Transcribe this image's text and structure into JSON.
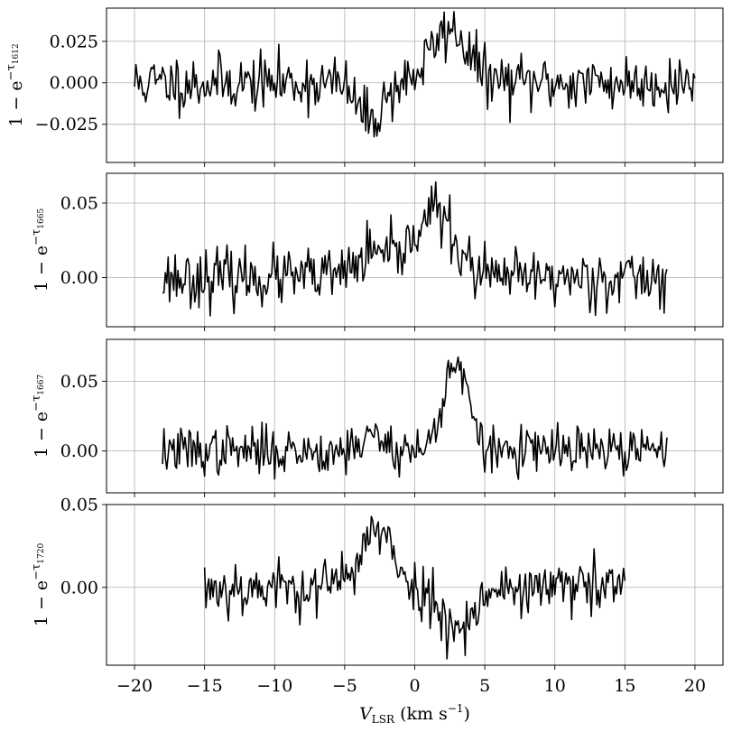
{
  "chart_data": {
    "type": "line",
    "layout": "4 vertically stacked panels sharing x axis",
    "grid": true,
    "xlabel": "V_LSR (km s^-1)",
    "xlabel_parts": {
      "main": "V",
      "sub": "LSR",
      "rest": " (km s",
      "sup": "−1",
      "end": ")"
    },
    "xlim": [
      -22,
      22
    ],
    "xticks": [
      -20,
      -15,
      -10,
      -5,
      0,
      5,
      10,
      15,
      20
    ],
    "xtick_labels": [
      "−20",
      "−15",
      "−10",
      "−5",
      "0",
      "5",
      "10",
      "15",
      "20"
    ],
    "line_color": "#000000",
    "grid_color": "#b0b0b0",
    "panels": [
      {
        "ylabel": "1 − e^(−τ1612)",
        "ylabel_parts": {
          "prefix": "1 − e",
          "sup": "−τ",
          "sub": "1612"
        },
        "ylim": [
          -0.048,
          0.045
        ],
        "yticks": [
          -0.025,
          0.0,
          0.025
        ],
        "ytick_labels": [
          "−0.025",
          "0.000",
          "0.025"
        ],
        "x_range": [
          -20,
          20
        ],
        "noise": 0.0085,
        "features": [
          {
            "center": 2.5,
            "amplitude": 0.032,
            "width": 1.3
          },
          {
            "center": -3.2,
            "amplitude": -0.022,
            "width": 0.9
          }
        ],
        "seed": 11
      },
      {
        "ylabel": "1 − e^(−τ1665)",
        "ylabel_parts": {
          "prefix": "1 − e",
          "sup": "−τ",
          "sub": "1665"
        },
        "ylim": [
          -0.033,
          0.07
        ],
        "yticks": [
          0.0,
          0.05
        ],
        "ytick_labels": [
          "0.00",
          "0.05"
        ],
        "x_range": [
          -18,
          18
        ],
        "noise": 0.0095,
        "features": [
          {
            "center": 1.3,
            "amplitude": 0.045,
            "width": 1.4
          },
          {
            "center": -3.0,
            "amplitude": 0.015,
            "width": 1.2
          }
        ],
        "seed": 23
      },
      {
        "ylabel": "1 − e^(−τ1667)",
        "ylabel_parts": {
          "prefix": "1 − e",
          "sup": "−τ",
          "sub": "1667"
        },
        "ylim": [
          -0.03,
          0.08
        ],
        "yticks": [
          0.0,
          0.05
        ],
        "ytick_labels": [
          "0.00",
          "0.05"
        ],
        "x_range": [
          -18,
          18
        ],
        "noise": 0.0085,
        "features": [
          {
            "center": 2.9,
            "amplitude": 0.065,
            "width": 0.85
          },
          {
            "center": -3.0,
            "amplitude": 0.01,
            "width": 1.0
          }
        ],
        "seed": 37
      },
      {
        "ylabel": "1 − e^(−τ1720)",
        "ylabel_parts": {
          "prefix": "1 − e",
          "sup": "−τ",
          "sub": "1720"
        },
        "ylim": [
          -0.047,
          0.05
        ],
        "yticks": [
          0.0,
          0.05
        ],
        "ytick_labels": [
          "0.00",
          "0.05"
        ],
        "x_range": [
          -15,
          15
        ],
        "noise": 0.0085,
        "features": [
          {
            "center": -2.8,
            "amplitude": 0.033,
            "width": 1.2
          },
          {
            "center": 3.0,
            "amplitude": -0.022,
            "width": 1.3
          }
        ],
        "seed": 53
      }
    ]
  }
}
